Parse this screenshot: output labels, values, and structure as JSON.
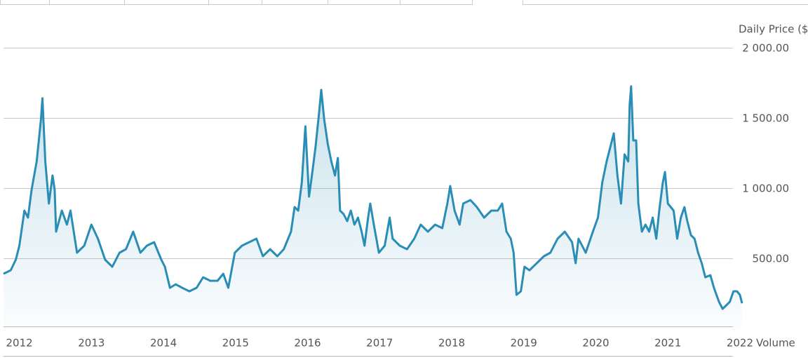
{
  "chart_data": {
    "type": "line",
    "y_label": "Daily Price ($)",
    "secondary_label": "Volume",
    "series": [
      {
        "name": "Daily Price",
        "color": "#2a8db5",
        "x": [
          2011.78,
          2011.88,
          2011.95,
          2012.0,
          2012.07,
          2012.12,
          2012.17,
          2012.24,
          2012.3,
          2012.32,
          2012.36,
          2012.41,
          2012.46,
          2012.49,
          2012.51,
          2012.59,
          2012.66,
          2012.71,
          2012.8,
          2012.9,
          2013.0,
          2013.09,
          2013.19,
          2013.29,
          2013.39,
          2013.48,
          2013.58,
          2013.68,
          2013.77,
          2013.87,
          2013.97,
          2014.02,
          2014.09,
          2014.17,
          2014.26,
          2014.36,
          2014.46,
          2014.55,
          2014.65,
          2014.75,
          2014.83,
          2014.9,
          2014.99,
          2015.09,
          2015.19,
          2015.29,
          2015.38,
          2015.48,
          2015.58,
          2015.67,
          2015.77,
          2015.82,
          2015.87,
          2015.92,
          2015.97,
          2016.02,
          2016.06,
          2016.11,
          2016.16,
          2016.19,
          2016.23,
          2016.28,
          2016.33,
          2016.38,
          2016.42,
          2016.45,
          2016.5,
          2016.55,
          2016.6,
          2016.65,
          2016.7,
          2016.75,
          2016.79,
          2016.84,
          2016.87,
          2016.92,
          2016.99,
          2017.07,
          2017.14,
          2017.18,
          2017.28,
          2017.38,
          2017.48,
          2017.57,
          2017.67,
          2017.77,
          2017.87,
          2017.94,
          2017.98,
          2018.04,
          2018.11,
          2018.16,
          2018.26,
          2018.35,
          2018.45,
          2018.55,
          2018.64,
          2018.7,
          2018.76,
          2018.82,
          2018.86,
          2018.9,
          2018.96,
          2019.01,
          2019.08,
          2019.18,
          2019.28,
          2019.37,
          2019.47,
          2019.57,
          2019.67,
          2019.72,
          2019.76,
          2019.86,
          2019.96,
          2020.03,
          2020.09,
          2020.15,
          2020.2,
          2020.25,
          2020.3,
          2020.35,
          2020.4,
          2020.45,
          2020.47,
          2020.49,
          2020.52,
          2020.56,
          2020.59,
          2020.64,
          2020.69,
          2020.74,
          2020.79,
          2020.84,
          2020.88,
          2020.93,
          2020.96,
          2021.0,
          2021.08,
          2021.13,
          2021.18,
          2021.23,
          2021.27,
          2021.32,
          2021.37,
          2021.42,
          2021.47,
          2021.52,
          2021.59,
          2021.64,
          2021.71,
          2021.76,
          2021.81,
          2021.86,
          2021.91,
          2021.96,
          2022.0,
          2022.03
        ],
        "values": [
          390,
          415,
          490,
          590,
          840,
          790,
          990,
          1190,
          1490,
          1640,
          1190,
          890,
          1090,
          990,
          690,
          840,
          740,
          840,
          540,
          590,
          740,
          640,
          490,
          440,
          540,
          565,
          690,
          540,
          590,
          615,
          490,
          440,
          290,
          315,
          290,
          265,
          290,
          365,
          340,
          340,
          390,
          290,
          540,
          590,
          615,
          640,
          515,
          565,
          515,
          565,
          690,
          865,
          840,
          1040,
          1440,
          940,
          1090,
          1290,
          1540,
          1700,
          1490,
          1315,
          1190,
          1090,
          1215,
          840,
          815,
          765,
          840,
          740,
          790,
          690,
          590,
          790,
          890,
          740,
          540,
          590,
          790,
          640,
          590,
          565,
          640,
          740,
          690,
          740,
          715,
          890,
          1015,
          840,
          740,
          890,
          915,
          865,
          790,
          840,
          840,
          890,
          690,
          640,
          540,
          240,
          265,
          440,
          415,
          465,
          515,
          540,
          640,
          690,
          615,
          465,
          640,
          540,
          690,
          790,
          1040,
          1190,
          1290,
          1390,
          1090,
          890,
          1240,
          1190,
          1590,
          1725,
          1340,
          1340,
          890,
          690,
          740,
          690,
          790,
          640,
          840,
          1040,
          1115,
          890,
          840,
          640,
          790,
          865,
          765,
          665,
          640,
          540,
          465,
          365,
          380,
          290,
          190,
          140,
          165,
          190,
          265,
          265,
          240,
          180
        ]
      }
    ],
    "xlim": [
      2011.78,
      2022.03
    ],
    "xticks": [
      2012,
      2013,
      2014,
      2015,
      2016,
      2017,
      2018,
      2019,
      2020,
      2021,
      2022
    ],
    "ylim": [
      0,
      2000
    ],
    "yticks": [
      {
        "value": 500,
        "label": "500.00"
      },
      {
        "value": 1000,
        "label": "1 000.00"
      },
      {
        "value": 1500,
        "label": "1 500.00"
      },
      {
        "value": 2000,
        "label": "2 000.00"
      }
    ],
    "grid": true
  }
}
